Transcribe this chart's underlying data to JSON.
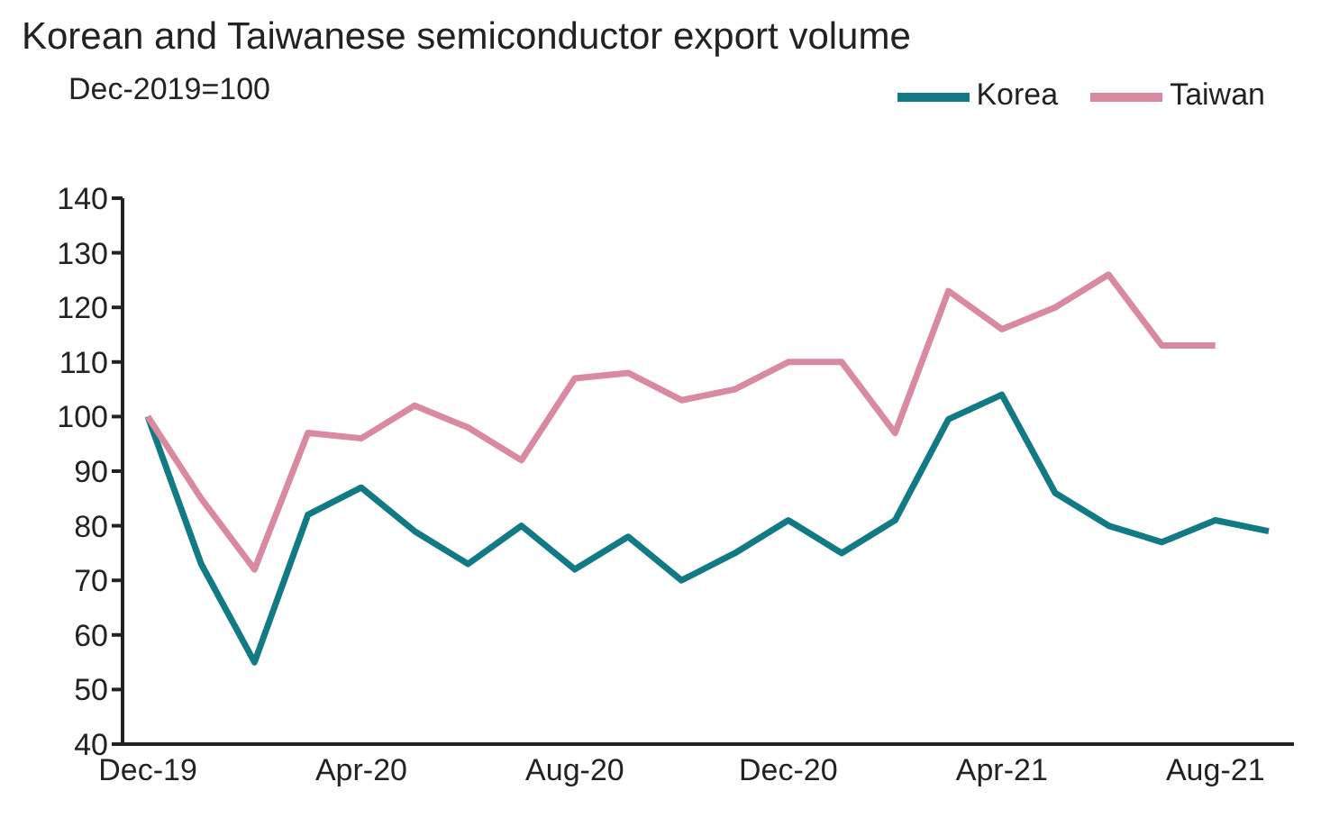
{
  "chart_data": {
    "type": "line",
    "title": "Korean and Taiwanese semiconductor export volume",
    "ylabel": "Dec-2019=100",
    "categories": [
      "Dec-19",
      null,
      null,
      null,
      "Apr-20",
      null,
      null,
      null,
      "Aug-20",
      null,
      null,
      null,
      "Dec-20",
      null,
      null,
      null,
      "Apr-21",
      null,
      null,
      null,
      "Aug-21",
      null
    ],
    "series": [
      {
        "name": "Korea",
        "color": "#127a85",
        "values": [
          100,
          73,
          55,
          82,
          87,
          79,
          73,
          80,
          72,
          78,
          70,
          75,
          81,
          75,
          81,
          99.5,
          104,
          86,
          80,
          77,
          81,
          79
        ]
      },
      {
        "name": "Taiwan",
        "color": "#d98aa0",
        "values": [
          100,
          85,
          72,
          97,
          96,
          102,
          98,
          92,
          107,
          108,
          103,
          105,
          110,
          110,
          97,
          123,
          116,
          120,
          126,
          113,
          113,
          null
        ]
      }
    ],
    "ylim": [
      40,
      140
    ],
    "yticks": [
      40,
      50,
      60,
      70,
      80,
      90,
      100,
      110,
      120,
      130,
      140
    ],
    "grid": false,
    "legend": "top right",
    "marker": "none",
    "line_style": "solid"
  }
}
